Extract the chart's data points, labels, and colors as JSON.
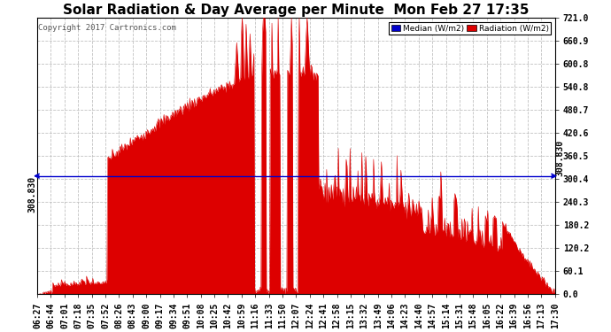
{
  "title": "Solar Radiation & Day Average per Minute  Mon Feb 27 17:35",
  "copyright": "Copyright 2017 Cartronics.com",
  "legend_median": "Median (W/m2)",
  "legend_radiation": "Radiation (W/m2)",
  "median_value": 308.83,
  "ymin": 0.0,
  "ymax": 721.0,
  "yticks": [
    0.0,
    60.1,
    120.2,
    180.2,
    240.3,
    300.4,
    360.5,
    420.6,
    480.7,
    540.8,
    600.8,
    660.9,
    721.0
  ],
  "ytick_labels": [
    "0.0",
    "60.1",
    "120.2",
    "180.2",
    "240.3",
    "300.4",
    "360.5",
    "420.6",
    "480.7",
    "540.8",
    "600.8",
    "660.9",
    "721.0"
  ],
  "background_color": "#ffffff",
  "fill_color": "#dd0000",
  "median_line_color": "#0000cc",
  "grid_color": "#bbbbbb",
  "title_fontsize": 11,
  "copyright_fontsize": 6.5,
  "tick_fontsize": 7,
  "xtick_labels": [
    "06:27",
    "06:44",
    "07:01",
    "07:18",
    "07:35",
    "07:52",
    "08:26",
    "08:43",
    "09:00",
    "09:17",
    "09:34",
    "09:51",
    "10:08",
    "10:25",
    "10:42",
    "10:59",
    "11:16",
    "11:33",
    "11:50",
    "12:07",
    "12:24",
    "12:41",
    "12:58",
    "13:15",
    "13:32",
    "13:49",
    "14:06",
    "14:23",
    "14:40",
    "14:57",
    "15:14",
    "15:31",
    "15:48",
    "16:05",
    "16:22",
    "16:39",
    "16:56",
    "17:13",
    "17:30"
  ],
  "n_points": 663
}
